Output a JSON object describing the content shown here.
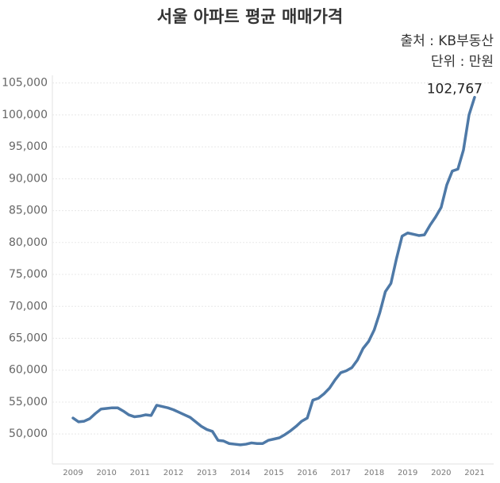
{
  "chart_data": {
    "type": "line",
    "title": "서울 아파트 평균 매매가격",
    "source": "출처 : KB부동산",
    "unit": "단위 : 만원",
    "categories": [
      "2009",
      null,
      null,
      null,
      null,
      null,
      "2010",
      null,
      null,
      null,
      null,
      null,
      "2011",
      null,
      null,
      null,
      null,
      null,
      "2012",
      null,
      null,
      null,
      null,
      null,
      "2013",
      null,
      null,
      null,
      null,
      null,
      "2014",
      null,
      null,
      null,
      null,
      null,
      "2015",
      null,
      null,
      null,
      null,
      null,
      "2016",
      null,
      null,
      null,
      null,
      null,
      "2017",
      null,
      null,
      null,
      null,
      null,
      "2018",
      null,
      null,
      null,
      null,
      null,
      "2019",
      null,
      null,
      null,
      null,
      null,
      "2020",
      null,
      null,
      null,
      null,
      null,
      "2021"
    ],
    "series": [
      {
        "color": "#4e79a7",
        "values": [
          52500,
          51900,
          52000,
          52400,
          53200,
          53900,
          54000,
          54100,
          54100,
          53600,
          53000,
          52700,
          52800,
          53000,
          52900,
          54500,
          54300,
          54100,
          53800,
          53400,
          53000,
          52600,
          51900,
          51200,
          50700,
          50400,
          49000,
          48900,
          48500,
          48400,
          48300,
          48400,
          48600,
          48500,
          48500,
          49000,
          49200,
          49400,
          49900,
          50500,
          51200,
          52000,
          52500,
          55300,
          55600,
          56300,
          57200,
          58500,
          59600,
          59900,
          60400,
          61600,
          63400,
          64500,
          66300,
          69000,
          72300,
          73600,
          77500,
          81000,
          81500,
          81300,
          81100,
          81200,
          82700,
          84000,
          85500,
          89000,
          91200,
          91500,
          94500,
          100000,
          102767
        ],
        "value_labels": [
          null,
          null,
          null,
          null,
          null,
          null,
          null,
          null,
          null,
          null,
          null,
          null,
          null,
          null,
          null,
          null,
          null,
          null,
          null,
          null,
          null,
          null,
          null,
          null,
          null,
          null,
          null,
          null,
          null,
          null,
          null,
          null,
          null,
          null,
          null,
          null,
          null,
          null,
          null,
          null,
          null,
          null,
          null,
          null,
          null,
          null,
          null,
          null,
          null,
          null,
          null,
          null,
          null,
          null,
          null,
          null,
          null,
          null,
          null,
          null,
          null,
          null,
          null,
          null,
          null,
          null,
          null,
          null,
          null,
          null,
          null,
          null,
          "102,767"
        ]
      }
    ],
    "ylim": [
      45300,
      106200
    ],
    "yticks": [
      {
        "value": 50000,
        "label": "50,000"
      },
      {
        "value": 55000,
        "label": "55,000"
      },
      {
        "value": 60000,
        "label": "60,000"
      },
      {
        "value": 65000,
        "label": "65,000"
      },
      {
        "value": 70000,
        "label": "70,000"
      },
      {
        "value": 75000,
        "label": "75,000"
      },
      {
        "value": 80000,
        "label": "80,000"
      },
      {
        "value": 85000,
        "label": "85,000"
      },
      {
        "value": 90000,
        "label": "90,000"
      },
      {
        "value": 95000,
        "label": "95,000"
      },
      {
        "value": 100000,
        "label": "100,000"
      },
      {
        "value": 105000,
        "label": "105,000"
      }
    ],
    "grid": true
  }
}
